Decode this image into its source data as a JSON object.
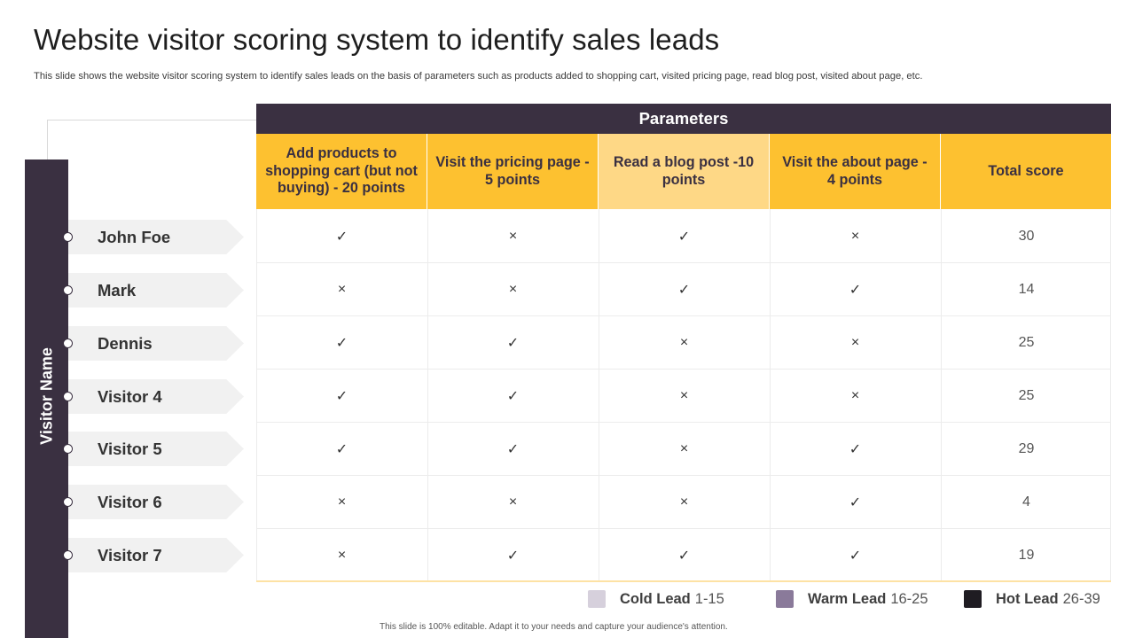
{
  "title": "Website visitor scoring system to identify sales leads",
  "subtitle": "This slide shows the website visitor scoring system to identify sales leads on the basis of parameters such as products added to shopping cart, visited pricing page, read blog post, visited about page, etc.",
  "visitor_axis_label": "Visitor Name",
  "parameters_label": "Parameters",
  "columns": [
    "Add products to shopping cart (but not buying) - 20 points",
    "Visit the pricing page - 5 points",
    "Read a blog post -10 points",
    "Visit the about page - 4 points",
    "Total score"
  ],
  "rows": [
    {
      "name": "John Foe",
      "marks": [
        "✓",
        "×",
        "✓",
        "×"
      ],
      "score": "30"
    },
    {
      "name": "Mark",
      "marks": [
        "×",
        "×",
        "✓",
        "✓"
      ],
      "score": "14"
    },
    {
      "name": "Dennis",
      "marks": [
        "✓",
        "✓",
        "×",
        "×"
      ],
      "score": "25"
    },
    {
      "name": "Visitor 4",
      "marks": [
        "✓",
        "✓",
        "×",
        "×"
      ],
      "score": "25"
    },
    {
      "name": "Visitor 5",
      "marks": [
        "✓",
        "✓",
        "×",
        "✓"
      ],
      "score": "29"
    },
    {
      "name": "Visitor 6",
      "marks": [
        "×",
        "×",
        "×",
        "✓"
      ],
      "score": "4"
    },
    {
      "name": "Visitor 7",
      "marks": [
        "×",
        "✓",
        "✓",
        "✓"
      ],
      "score": "19"
    }
  ],
  "legend": [
    {
      "label": "Cold Lead",
      "range": "1-15",
      "color": "#d6d0dc"
    },
    {
      "label": "Warm Lead",
      "range": "16-25",
      "color": "#8a7a9a"
    },
    {
      "label": "Hot Lead",
      "range": "26-39",
      "color": "#1f1c22"
    }
  ],
  "footer": "This slide is 100% editable. Adapt it to your needs and capture your audience's attention.",
  "colors": {
    "dark": "#3a3041",
    "amber": "#fdc130",
    "amber_light": "#fed886"
  }
}
